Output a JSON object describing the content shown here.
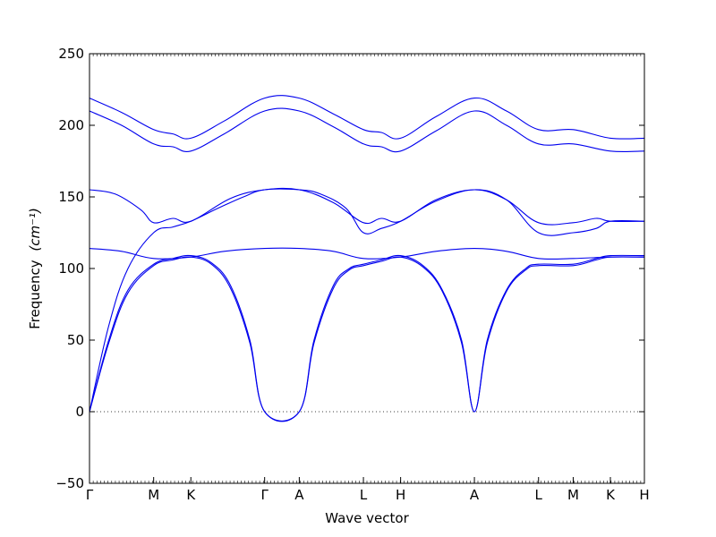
{
  "chart_data": {
    "type": "line",
    "title": "",
    "xlabel": "Wave vector",
    "ylabel": "Frequency",
    "ylabel_unit": "(cm⁻¹)",
    "ylim": [
      -50,
      250
    ],
    "yticks": [
      -50,
      0,
      50,
      100,
      150,
      200,
      250
    ],
    "xlim": [
      0,
      8.65
    ],
    "grid": false,
    "legend": "none",
    "line_color": "#0000ee",
    "zero_line": {
      "y": 0,
      "style": "dotted"
    },
    "high_symmetry_points": [
      {
        "label": "Γ",
        "x": 0
      },
      {
        "label": "M",
        "x": 1.0
      },
      {
        "label": "K",
        "x": 1.58
      },
      {
        "label": "Γ",
        "x": 2.73
      },
      {
        "label": "A",
        "x": 3.27
      },
      {
        "label": "L",
        "x": 4.27
      },
      {
        "label": "H",
        "x": 4.85
      },
      {
        "label": "A",
        "x": 6.0
      },
      {
        "label": "L",
        "x": 7.0
      },
      {
        "label": "M",
        "x": 7.54
      },
      {
        "label": "K",
        "x": 8.12
      },
      {
        "label": "H",
        "x": 8.65
      }
    ],
    "series": [
      {
        "values": [
          [
            0,
            219
          ],
          [
            0.5,
            209
          ],
          [
            1.0,
            197
          ],
          [
            1.3,
            194
          ],
          [
            1.58,
            191
          ],
          [
            2.1,
            203
          ],
          [
            2.73,
            219
          ],
          [
            3.27,
            219
          ],
          [
            3.8,
            208
          ],
          [
            4.27,
            197
          ],
          [
            4.55,
            195
          ],
          [
            4.85,
            191
          ],
          [
            5.4,
            206
          ],
          [
            6.0,
            219
          ],
          [
            6.5,
            210
          ],
          [
            7.0,
            197
          ],
          [
            7.54,
            197
          ],
          [
            8.12,
            191
          ],
          [
            8.65,
            191
          ]
        ]
      },
      {
        "values": [
          [
            0,
            210
          ],
          [
            0.5,
            200
          ],
          [
            1.0,
            187
          ],
          [
            1.3,
            185
          ],
          [
            1.58,
            182
          ],
          [
            2.1,
            194
          ],
          [
            2.73,
            210
          ],
          [
            3.27,
            210
          ],
          [
            3.8,
            199
          ],
          [
            4.27,
            187
          ],
          [
            4.55,
            185
          ],
          [
            4.85,
            182
          ],
          [
            5.4,
            196
          ],
          [
            6.0,
            210
          ],
          [
            6.5,
            200
          ],
          [
            7.0,
            187
          ],
          [
            7.54,
            187
          ],
          [
            8.12,
            182
          ],
          [
            8.65,
            182
          ]
        ]
      },
      {
        "values": [
          [
            0,
            155
          ],
          [
            0.4,
            152
          ],
          [
            0.8,
            141
          ],
          [
            1.0,
            132
          ],
          [
            1.3,
            135
          ],
          [
            1.58,
            133
          ],
          [
            2.2,
            149
          ],
          [
            2.73,
            155
          ],
          [
            3.27,
            155
          ],
          [
            3.8,
            146
          ],
          [
            4.27,
            132
          ],
          [
            4.55,
            135
          ],
          [
            4.85,
            133
          ],
          [
            5.4,
            148
          ],
          [
            6.0,
            155
          ],
          [
            6.5,
            148
          ],
          [
            7.0,
            132
          ],
          [
            7.54,
            132
          ],
          [
            7.9,
            135
          ],
          [
            8.12,
            133
          ],
          [
            8.65,
            133
          ]
        ]
      },
      {
        "values": [
          [
            0,
            0
          ],
          [
            0.3,
            60
          ],
          [
            0.6,
            100
          ],
          [
            1.0,
            125
          ],
          [
            1.3,
            129
          ],
          [
            1.58,
            133
          ],
          [
            2.0,
            142
          ],
          [
            2.4,
            150
          ],
          [
            2.73,
            155
          ],
          [
            3.27,
            155
          ],
          [
            3.6,
            152
          ],
          [
            4.0,
            142
          ],
          [
            4.27,
            125
          ],
          [
            4.55,
            128
          ],
          [
            4.85,
            133
          ],
          [
            5.4,
            147
          ],
          [
            6.0,
            155
          ],
          [
            6.5,
            148
          ],
          [
            7.0,
            125
          ],
          [
            7.54,
            125
          ],
          [
            7.9,
            128
          ],
          [
            8.12,
            133
          ],
          [
            8.65,
            133
          ]
        ]
      },
      {
        "values": [
          [
            0,
            114
          ],
          [
            0.5,
            112
          ],
          [
            1.0,
            107
          ],
          [
            1.58,
            108
          ],
          [
            2.1,
            112
          ],
          [
            2.73,
            114
          ],
          [
            3.27,
            114
          ],
          [
            3.8,
            112
          ],
          [
            4.27,
            107
          ],
          [
            4.85,
            108
          ],
          [
            5.4,
            112
          ],
          [
            6.0,
            114
          ],
          [
            6.5,
            112
          ],
          [
            7.0,
            107
          ],
          [
            7.54,
            107
          ],
          [
            8.12,
            108
          ],
          [
            8.65,
            108
          ]
        ]
      },
      {
        "values": [
          [
            0,
            0
          ],
          [
            0.3,
            50
          ],
          [
            0.6,
            85
          ],
          [
            1.0,
            103
          ],
          [
            1.3,
            107
          ],
          [
            1.58,
            109
          ],
          [
            1.9,
            104
          ],
          [
            2.2,
            88
          ],
          [
            2.5,
            50
          ],
          [
            2.73,
            0
          ],
          [
            3.27,
            0
          ],
          [
            3.5,
            50
          ],
          [
            3.8,
            88
          ],
          [
            4.05,
            100
          ],
          [
            4.27,
            103
          ],
          [
            4.55,
            106
          ],
          [
            4.85,
            109
          ],
          [
            5.2,
            102
          ],
          [
            5.5,
            85
          ],
          [
            5.8,
            50
          ],
          [
            6.0,
            0
          ],
          [
            6.2,
            50
          ],
          [
            6.5,
            85
          ],
          [
            6.8,
            100
          ],
          [
            7.0,
            103
          ],
          [
            7.54,
            103
          ],
          [
            7.9,
            107
          ],
          [
            8.12,
            109
          ],
          [
            8.65,
            109
          ]
        ]
      },
      {
        "values": [
          [
            0,
            0
          ],
          [
            0.3,
            48
          ],
          [
            0.6,
            83
          ],
          [
            1.0,
            102
          ],
          [
            1.3,
            106
          ],
          [
            1.58,
            108
          ],
          [
            1.9,
            103
          ],
          [
            2.2,
            86
          ],
          [
            2.5,
            48
          ],
          [
            2.73,
            0
          ],
          [
            3.27,
            0
          ],
          [
            3.5,
            48
          ],
          [
            3.8,
            86
          ],
          [
            4.05,
            99
          ],
          [
            4.27,
            102
          ],
          [
            4.55,
            105
          ],
          [
            4.85,
            108
          ],
          [
            5.2,
            101
          ],
          [
            5.5,
            84
          ],
          [
            5.8,
            48
          ],
          [
            6.0,
            0
          ],
          [
            6.2,
            48
          ],
          [
            6.5,
            84
          ],
          [
            6.8,
            99
          ],
          [
            7.0,
            102
          ],
          [
            7.54,
            102
          ],
          [
            7.9,
            106
          ],
          [
            8.12,
            108
          ],
          [
            8.65,
            108
          ]
        ]
      }
    ]
  }
}
